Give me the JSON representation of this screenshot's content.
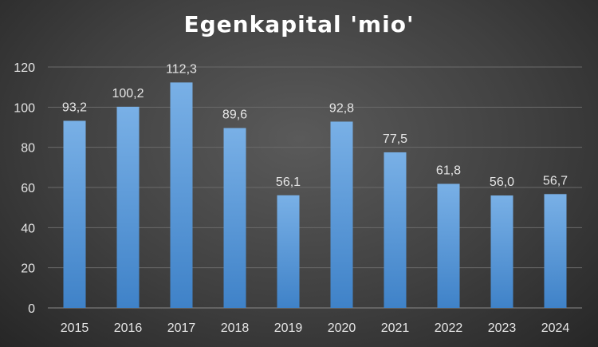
{
  "chart_data": {
    "type": "bar",
    "title": "Egenkapital 'mio'",
    "xlabel": "",
    "ylabel": "",
    "categories": [
      "2015",
      "2016",
      "2017",
      "2018",
      "2019",
      "2020",
      "2021",
      "2022",
      "2023",
      "2024"
    ],
    "values": [
      93.2,
      100.2,
      112.3,
      89.6,
      56.1,
      92.8,
      77.5,
      61.8,
      56.0,
      56.7
    ],
    "data_labels": [
      "93,2",
      "100,2",
      "112,3",
      "89,6",
      "56,1",
      "92,8",
      "77,5",
      "61,8",
      "56,0",
      "56,7"
    ],
    "ylim": [
      0,
      120
    ],
    "yticks": [
      0,
      20,
      40,
      60,
      80,
      100,
      120
    ],
    "grid": true,
    "legend": "none",
    "colors": {
      "bar_top": "#79b0e6",
      "bar_bottom": "#3f82c8",
      "grid": "#6a6a6a",
      "text": "#e6e6e6"
    }
  }
}
